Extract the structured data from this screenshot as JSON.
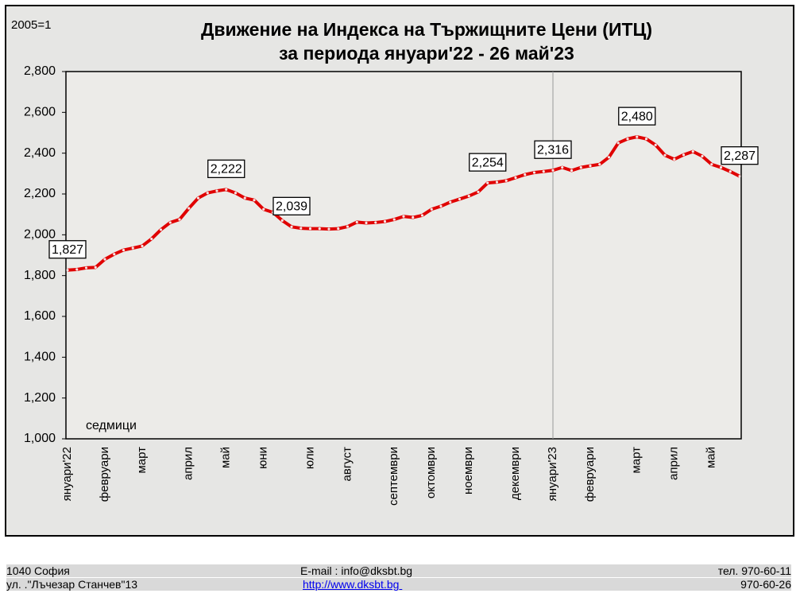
{
  "chart_data": {
    "type": "line",
    "title": "Движение на Индекса на Тържищните Цени (ИТЦ)",
    "subtitle": "за периода януари'22 - 26 май'23",
    "note": "2005=1",
    "x_label": "седмици",
    "color": "#e00000",
    "categories": [
      "януари'22",
      null,
      null,
      null,
      "февруари",
      null,
      null,
      null,
      "март",
      null,
      null,
      null,
      null,
      "април",
      null,
      null,
      null,
      "май",
      null,
      null,
      null,
      "юни",
      null,
      null,
      null,
      null,
      "юли",
      null,
      null,
      null,
      "август",
      null,
      null,
      null,
      null,
      "септември",
      null,
      null,
      null,
      "октомври",
      null,
      null,
      null,
      "ноември",
      null,
      null,
      null,
      null,
      "декември",
      null,
      null,
      null,
      "януари'23",
      null,
      null,
      null,
      "февруари",
      null,
      null,
      null,
      null,
      "март",
      null,
      null,
      null,
      "април",
      null,
      null,
      null,
      "май",
      null,
      null,
      null
    ],
    "values": [
      1827,
      1830,
      1838,
      1840,
      1880,
      1905,
      1925,
      1935,
      1945,
      1980,
      2025,
      2060,
      2075,
      2130,
      2180,
      2205,
      2215,
      2222,
      2205,
      2180,
      2170,
      2125,
      2110,
      2070,
      2039,
      2032,
      2030,
      2030,
      2028,
      2030,
      2040,
      2062,
      2058,
      2060,
      2065,
      2075,
      2090,
      2085,
      2095,
      2125,
      2140,
      2160,
      2175,
      2190,
      2210,
      2254,
      2258,
      2265,
      2280,
      2295,
      2305,
      2310,
      2316,
      2330,
      2315,
      2330,
      2338,
      2345,
      2380,
      2450,
      2470,
      2480,
      2470,
      2440,
      2390,
      2370,
      2392,
      2408,
      2385,
      2345,
      2330,
      2310,
      2287
    ],
    "value_labels": [
      "1,827",
      null,
      null,
      null,
      null,
      null,
      null,
      null,
      null,
      null,
      null,
      null,
      null,
      null,
      null,
      null,
      null,
      "2,222",
      null,
      null,
      null,
      null,
      null,
      null,
      "2,039",
      null,
      null,
      null,
      null,
      null,
      null,
      null,
      null,
      null,
      null,
      null,
      null,
      null,
      null,
      null,
      null,
      null,
      null,
      null,
      null,
      "2,254",
      null,
      null,
      null,
      null,
      null,
      null,
      "2,316",
      null,
      null,
      null,
      null,
      null,
      null,
      null,
      null,
      "2,480",
      null,
      null,
      null,
      null,
      null,
      null,
      null,
      null,
      null,
      null,
      "2,287"
    ],
    "ylim": [
      1000,
      2800
    ],
    "yticks": [
      {
        "value": 1000,
        "label": "1,000"
      },
      {
        "value": 1200,
        "label": "1,200"
      },
      {
        "value": 1400,
        "label": "1,400"
      },
      {
        "value": 1600,
        "label": "1,600"
      },
      {
        "value": 1800,
        "label": "1,800"
      },
      {
        "value": 2000,
        "label": "2,000"
      },
      {
        "value": 2200,
        "label": "2,200"
      },
      {
        "value": 2400,
        "label": "2,400"
      },
      {
        "value": 2600,
        "label": "2,600"
      },
      {
        "value": 2800,
        "label": "2,800"
      }
    ],
    "grid": false
  },
  "footer": {
    "rows": [
      [
        "1040 София",
        "E-mail : info@dksbt.bg",
        "тел. 970-60-11"
      ],
      [
        "ул. .\"Лъчезар Станчев\"13",
        "http://www.dksbt.bg ",
        "970-60-26"
      ]
    ]
  }
}
